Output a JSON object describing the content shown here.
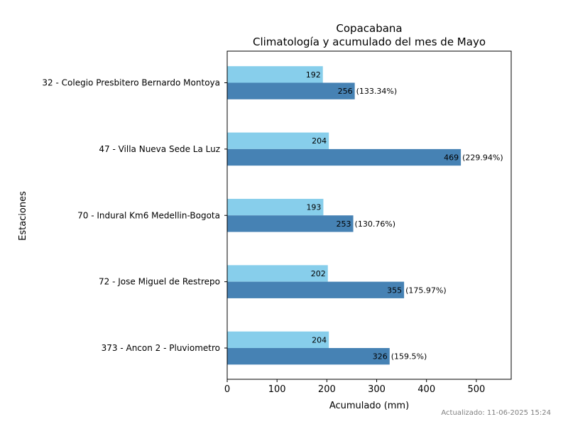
{
  "chart_data": {
    "type": "bar",
    "orientation": "horizontal",
    "title": "Copacabana",
    "subtitle": "Climatología y acumulado del mes de Mayo",
    "xlabel": "Acumulado (mm)",
    "ylabel": "Estaciones",
    "xlim": [
      0,
      570
    ],
    "xticks": [
      0,
      100,
      200,
      300,
      400,
      500
    ],
    "grid": false,
    "categories": [
      "32 - Colegio Presbitero Bernardo Montoya",
      "47 - Villa Nueva Sede La Luz",
      "70 - Indural Km6 Medellin-Bogota",
      "72 - Jose Miguel de Restrepo",
      "373 - Ancon 2 - Pluviometro"
    ],
    "series": [
      {
        "values": [
          192,
          204,
          193,
          202,
          204
        ],
        "color": "#87ceeb",
        "value_labels": [
          "192",
          "204",
          "193",
          "202",
          "204"
        ]
      },
      {
        "values": [
          256,
          469,
          253,
          355,
          326
        ],
        "color": "#4682b4",
        "value_labels": [
          "256",
          "469",
          "253",
          "355",
          "326"
        ],
        "percent_labels": [
          "(133.34%)",
          "(229.94%)",
          "(130.76%)",
          "(175.97%)",
          "(159.5%)"
        ]
      }
    ]
  },
  "footer": {
    "updated": "Actualizado: 11-06-2025 15:24"
  }
}
